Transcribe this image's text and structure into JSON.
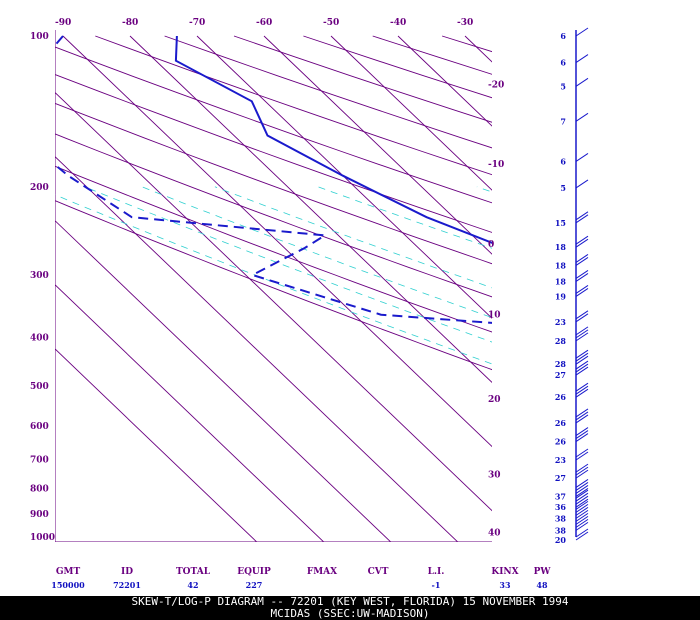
{
  "chart_data": {
    "type": "line",
    "title": "SKEW-T/LOG-P DIAGRAM -- 72201 (KEY WEST, FLORIDA) 15 NOVEMBER 1994",
    "subtitle": "MCIDAS (SSEC:UW-MADISON)",
    "xlabel": "",
    "ylabel": "",
    "pressure_ticks": [
      100,
      200,
      300,
      400,
      500,
      600,
      700,
      800,
      900,
      1000
    ],
    "temperature_ticks_top": [
      -90,
      -80,
      -70,
      -60,
      -50,
      -40,
      -30
    ],
    "isotherm_labels_right": [
      {
        "t": -20,
        "p": 125
      },
      {
        "t": -10,
        "p": 180
      },
      {
        "t": 0,
        "p": 260
      },
      {
        "t": 10,
        "p": 360
      },
      {
        "t": 20,
        "p": 530
      },
      {
        "t": 30,
        "p": 750
      },
      {
        "t": 40,
        "p": 980
      }
    ],
    "series": [
      {
        "values": [
          [
            100,
            -73
          ],
          [
            112,
            -77
          ],
          [
            135,
            -72
          ],
          [
            158,
            -75
          ],
          [
            190,
            -70
          ],
          [
            230,
            -64
          ],
          [
            260,
            -58
          ],
          [
            295,
            -54
          ],
          [
            320,
            -51
          ],
          [
            360,
            -44
          ],
          [
            400,
            -39
          ],
          [
            435,
            -34
          ],
          [
            460,
            -30
          ],
          [
            510,
            -24
          ],
          [
            560,
            -20
          ],
          [
            620,
            -15
          ],
          [
            680,
            -10
          ],
          [
            730,
            -9
          ],
          [
            780,
            -4
          ],
          [
            850,
            2
          ],
          [
            900,
            6
          ],
          [
            940,
            10
          ],
          [
            985,
            15
          ],
          [
            1000,
            17
          ]
        ]
      },
      {
        "values": [
          [
            100,
            -90
          ],
          [
            112,
            -97
          ],
          [
            135,
            -105
          ],
          [
            158,
            -112
          ],
          [
            190,
            -111
          ],
          [
            230,
            -108
          ],
          [
            250,
            -82
          ],
          [
            265,
            -87
          ],
          [
            300,
            -99
          ],
          [
            360,
            -86
          ],
          [
            380,
            -64
          ],
          [
            405,
            -60
          ],
          [
            440,
            -58
          ],
          [
            445,
            -46
          ],
          [
            455,
            -35
          ],
          [
            520,
            -31
          ],
          [
            570,
            -25
          ],
          [
            620,
            -25
          ],
          [
            660,
            -27
          ],
          [
            690,
            -32
          ],
          [
            700,
            -24
          ],
          [
            730,
            -22
          ],
          [
            760,
            -24
          ],
          [
            790,
            -11
          ],
          [
            850,
            -7
          ],
          [
            920,
            -5
          ],
          [
            970,
            -5
          ]
        ]
      }
    ],
    "stats": {
      "headers": [
        "GMT",
        "ID",
        "TOTAL",
        "EQUIP",
        "FMAX",
        "CVT",
        "L.I.",
        "KINX",
        "PW"
      ],
      "values": [
        "150000",
        "72201",
        "42",
        "227",
        "",
        "",
        "-1",
        "33",
        "48"
      ]
    },
    "wind_labels": [
      {
        "p": 100,
        "v": "6"
      },
      {
        "p": 113,
        "v": "6"
      },
      {
        "p": 126,
        "v": "5"
      },
      {
        "p": 148,
        "v": "7"
      },
      {
        "p": 178,
        "v": "6"
      },
      {
        "p": 201,
        "v": "5"
      },
      {
        "p": 236,
        "v": "15"
      },
      {
        "p": 264,
        "v": "18"
      },
      {
        "p": 287,
        "v": "18"
      },
      {
        "p": 309,
        "v": "18"
      },
      {
        "p": 331,
        "v": "19"
      },
      {
        "p": 372,
        "v": "23"
      },
      {
        "p": 406,
        "v": "28"
      },
      {
        "p": 452,
        "v": "28"
      },
      {
        "p": 475,
        "v": "27"
      },
      {
        "p": 526,
        "v": "26"
      },
      {
        "p": 592,
        "v": "26"
      },
      {
        "p": 645,
        "v": "26"
      },
      {
        "p": 702,
        "v": "23"
      },
      {
        "p": 763,
        "v": "27"
      },
      {
        "p": 830,
        "v": "37"
      },
      {
        "p": 872,
        "v": "36"
      },
      {
        "p": 918,
        "v": "38"
      },
      {
        "p": 970,
        "v": "38"
      },
      {
        "p": 1015,
        "v": "20"
      }
    ]
  }
}
